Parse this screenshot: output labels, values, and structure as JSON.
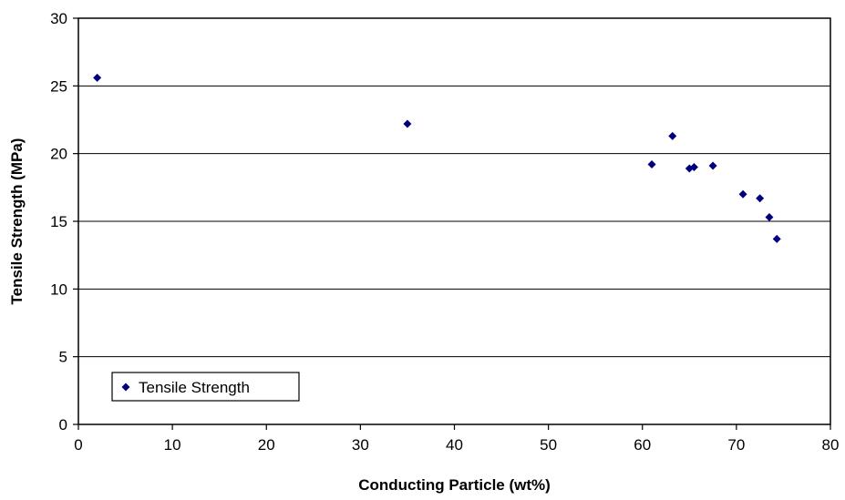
{
  "chart_data": {
    "type": "scatter",
    "title": "",
    "xlabel": "Conducting Particle (wt%)",
    "ylabel": "Tensile Strength (MPa)",
    "xlim": [
      0,
      80
    ],
    "ylim": [
      0,
      30
    ],
    "xticks": [
      0,
      10,
      20,
      30,
      40,
      50,
      60,
      70,
      80
    ],
    "yticks": [
      0,
      5,
      10,
      15,
      20,
      25,
      30
    ],
    "xtick_labels": [
      "0",
      "10",
      "20",
      "30",
      "40",
      "50",
      "60",
      "70",
      "80"
    ],
    "ytick_labels": [
      "0",
      "5",
      "10",
      "15",
      "20",
      "25",
      "30"
    ],
    "grid": "horizontal",
    "legend_position": "bottom-left",
    "marker": "diamond",
    "series": [
      {
        "name": "Tensile Strength",
        "color": "#00007f",
        "points": [
          {
            "x": 2.0,
            "y": 25.6
          },
          {
            "x": 35.0,
            "y": 22.2
          },
          {
            "x": 61.0,
            "y": 19.2
          },
          {
            "x": 63.2,
            "y": 21.3
          },
          {
            "x": 65.0,
            "y": 18.9
          },
          {
            "x": 65.5,
            "y": 19.0
          },
          {
            "x": 67.5,
            "y": 19.1
          },
          {
            "x": 70.7,
            "y": 17.0
          },
          {
            "x": 72.5,
            "y": 16.7
          },
          {
            "x": 73.5,
            "y": 15.3
          },
          {
            "x": 74.3,
            "y": 13.7
          }
        ]
      }
    ]
  }
}
